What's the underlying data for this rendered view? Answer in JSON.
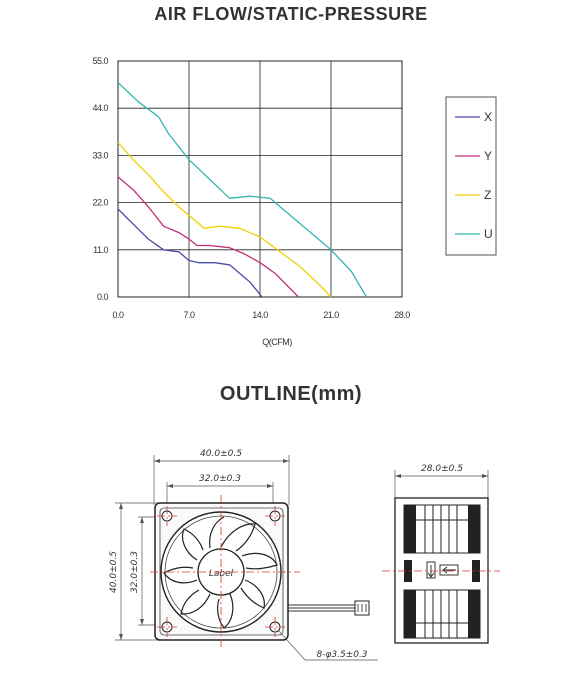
{
  "chart_title": "AIR FLOW/STATIC-PRESSURE",
  "outline_title": "OUTLINE(mm)",
  "chart_data": {
    "type": "line",
    "title": "AIR FLOW/STATIC-PRESSURE",
    "xlabel": "Q(CFM)",
    "ylabel": "",
    "xlim": [
      0,
      28
    ],
    "ylim": [
      0,
      55
    ],
    "x_ticks": [
      "0.0",
      "7.0",
      "14.0",
      "21.0",
      "28.0"
    ],
    "y_ticks": [
      "0.0",
      "11.0",
      "22.0",
      "33.0",
      "44.0",
      "55.0"
    ],
    "grid": true,
    "legend_position": "right",
    "series": [
      {
        "name": "X",
        "color": "#4a4aa8",
        "x": [
          0,
          1.5,
          3,
          4.5,
          6,
          7,
          8,
          9.5,
          11,
          12,
          13,
          14.2
        ],
        "y": [
          20.5,
          17,
          13.5,
          11,
          10.5,
          8.5,
          8,
          8,
          7.5,
          5.5,
          3.5,
          0
        ]
      },
      {
        "name": "Y",
        "color": "#c0307a",
        "x": [
          0,
          1.5,
          3,
          4.5,
          6,
          7,
          7.8,
          9,
          11,
          12.5,
          14,
          15.5,
          17.8
        ],
        "y": [
          28,
          25,
          21,
          16.5,
          15,
          13.5,
          12,
          12,
          11.5,
          10,
          8,
          5.5,
          0
        ]
      },
      {
        "name": "Z",
        "color": "#f0d000",
        "x": [
          0,
          1.5,
          3,
          4.5,
          6,
          7,
          8.5,
          10,
          12,
          14,
          16,
          18,
          20,
          21
        ],
        "y": [
          36,
          32,
          28.5,
          24.5,
          21,
          19,
          16,
          16.5,
          16,
          14,
          10.5,
          7,
          2.5,
          0
        ]
      },
      {
        "name": "U",
        "color": "#30b8b0",
        "x": [
          0,
          2,
          4,
          5,
          7,
          9,
          11,
          13,
          15,
          17,
          19,
          21,
          23,
          24.5
        ],
        "y": [
          50,
          45.5,
          42,
          38,
          32,
          27.5,
          23,
          23.5,
          23,
          19,
          15,
          11,
          6,
          0
        ]
      }
    ]
  },
  "outline": {
    "dims": {
      "width_outer": "40.0±0.5",
      "width_hole": "32.0±0.3",
      "height_outer": "40.0±0.5",
      "height_hole": "32.0±0.3",
      "depth": "28.0±0.5",
      "holes": "8-φ3.5±0.3"
    },
    "fan_label": "Label"
  }
}
